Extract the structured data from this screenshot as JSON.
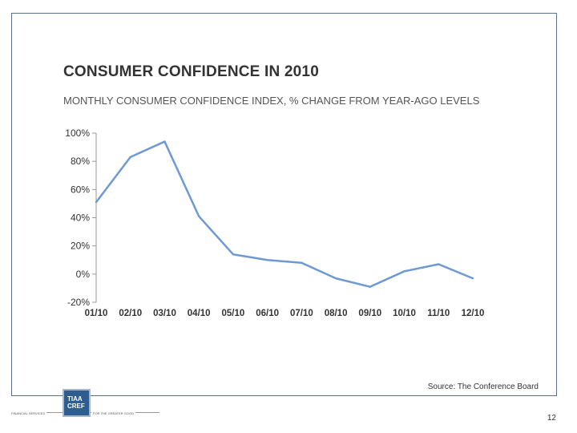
{
  "title": "CONSUMER CONFIDENCE IN 2010",
  "subtitle": "MONTHLY CONSUMER CONFIDENCE INDEX, % CHANGE FROM YEAR-AGO LEVELS",
  "source": "Source: The Conference Board",
  "page_number": "12",
  "logo": {
    "line1": "TIAA",
    "line2": "CREF"
  },
  "footer": {
    "left": "FINANCIAL SERVICES",
    "right": "FOR THE GREATER GOOD"
  },
  "colors": {
    "line": "#6f99d3",
    "axis": "#999999",
    "frame": "#5a6f8c"
  },
  "chart_data": {
    "type": "line",
    "title": "CONSUMER CONFIDENCE IN 2010",
    "subtitle": "MONTHLY CONSUMER CONFIDENCE INDEX, % CHANGE FROM YEAR-AGO LEVELS",
    "categories": [
      "01/10",
      "02/10",
      "03/10",
      "04/10",
      "05/10",
      "06/10",
      "07/10",
      "08/10",
      "09/10",
      "10/10",
      "11/10",
      "12/10"
    ],
    "series": [
      {
        "values": [
          51,
          83,
          94,
          41,
          14,
          10,
          8,
          -3,
          -9,
          2,
          7,
          -3
        ]
      }
    ],
    "ylim": [
      -20,
      100
    ],
    "yticks": [
      100,
      80,
      60,
      40,
      20,
      0,
      -20
    ],
    "ytick_labels": [
      "100%",
      "80%",
      "60%",
      "40%",
      "20%",
      "0%",
      "-20%"
    ],
    "grid": false,
    "legend": "none"
  }
}
